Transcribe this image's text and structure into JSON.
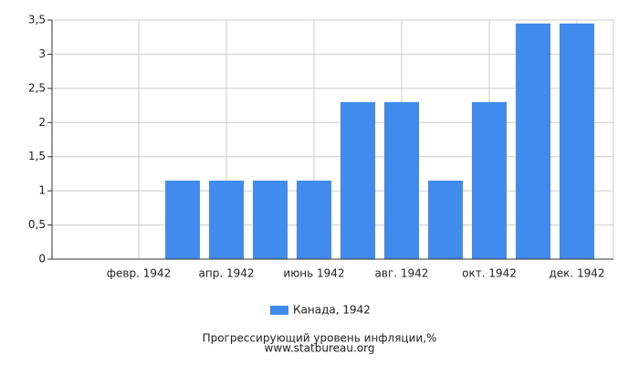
{
  "chart_data": {
    "type": "bar",
    "categories": [
      null,
      "февр. 1942",
      null,
      "апр. 1942",
      null,
      "июнь 1942",
      null,
      "авг. 1942",
      null,
      "окт. 1942",
      null,
      "дек. 1942"
    ],
    "series": [
      {
        "name": "Канада, 1942",
        "color": "#428bee",
        "values": [
          0,
          0,
          1.15,
          1.15,
          1.15,
          1.15,
          2.3,
          2.3,
          1.15,
          2.3,
          3.45,
          3.45
        ]
      }
    ],
    "ylim": [
      0,
      3.5
    ],
    "yticks": [
      0,
      {
        "value": 0.5,
        "label": "0,5"
      },
      1,
      {
        "value": 1.5,
        "label": "1,5"
      },
      2,
      {
        "value": 2.5,
        "label": "2,5"
      },
      3,
      {
        "value": 3.5,
        "label": "3,5"
      }
    ],
    "grid": true,
    "footer": [
      "Прогрессирующий уровень инфляции,%",
      "www.statbureau.org"
    ]
  }
}
